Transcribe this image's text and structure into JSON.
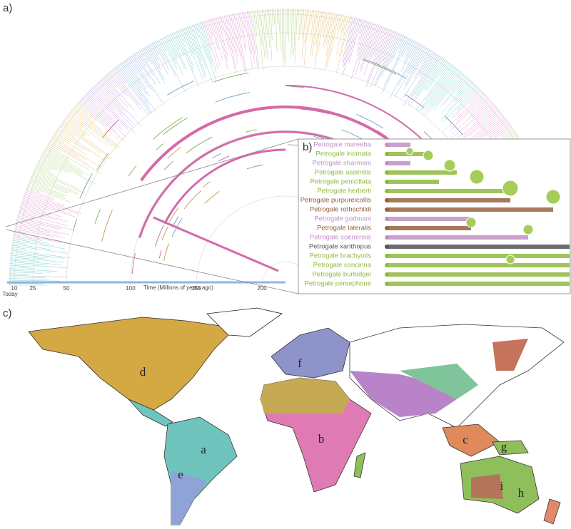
{
  "panels": {
    "a": "a)",
    "b": "b)",
    "c": "c)"
  },
  "time_axis": {
    "title": "Time (Millions of years ago)",
    "ticks": [
      "Today",
      "10",
      "25",
      "50",
      "100",
      "150",
      "200"
    ]
  },
  "species": [
    {
      "name": "Petrogale mareeba",
      "color": "#c08fc6"
    },
    {
      "name": "Petrogale inornata",
      "color": "#8fba3e"
    },
    {
      "name": "Petrogale sharmani",
      "color": "#c08fc6"
    },
    {
      "name": "Petrogale assimilis",
      "color": "#8fba3e"
    },
    {
      "name": "Petrogale penicillata",
      "color": "#8fba3e"
    },
    {
      "name": "Petrogale herberti",
      "color": "#8fba3e"
    },
    {
      "name": "Petrogale purpureicollis",
      "color": "#96603f"
    },
    {
      "name": "Petrogale rothschildi",
      "color": "#96603f"
    },
    {
      "name": "Petrogale godmani",
      "color": "#c08fc6"
    },
    {
      "name": "Petrogale lateralis",
      "color": "#96603f"
    },
    {
      "name": "Petrogale coenensis",
      "color": "#c08fc6"
    },
    {
      "name": "Petrogale xanthopus",
      "color": "#555555"
    },
    {
      "name": "Petrogale brachyotis",
      "color": "#8fba3e"
    },
    {
      "name": "Petrogale concinna",
      "color": "#8fba3e"
    },
    {
      "name": "Petrogale burbidgei",
      "color": "#8fba3e"
    },
    {
      "name": "Petrogale persephone",
      "color": "#8fba3e"
    }
  ],
  "regions": [
    "a",
    "b",
    "c",
    "d",
    "e",
    "f",
    "g",
    "h",
    "i"
  ]
}
